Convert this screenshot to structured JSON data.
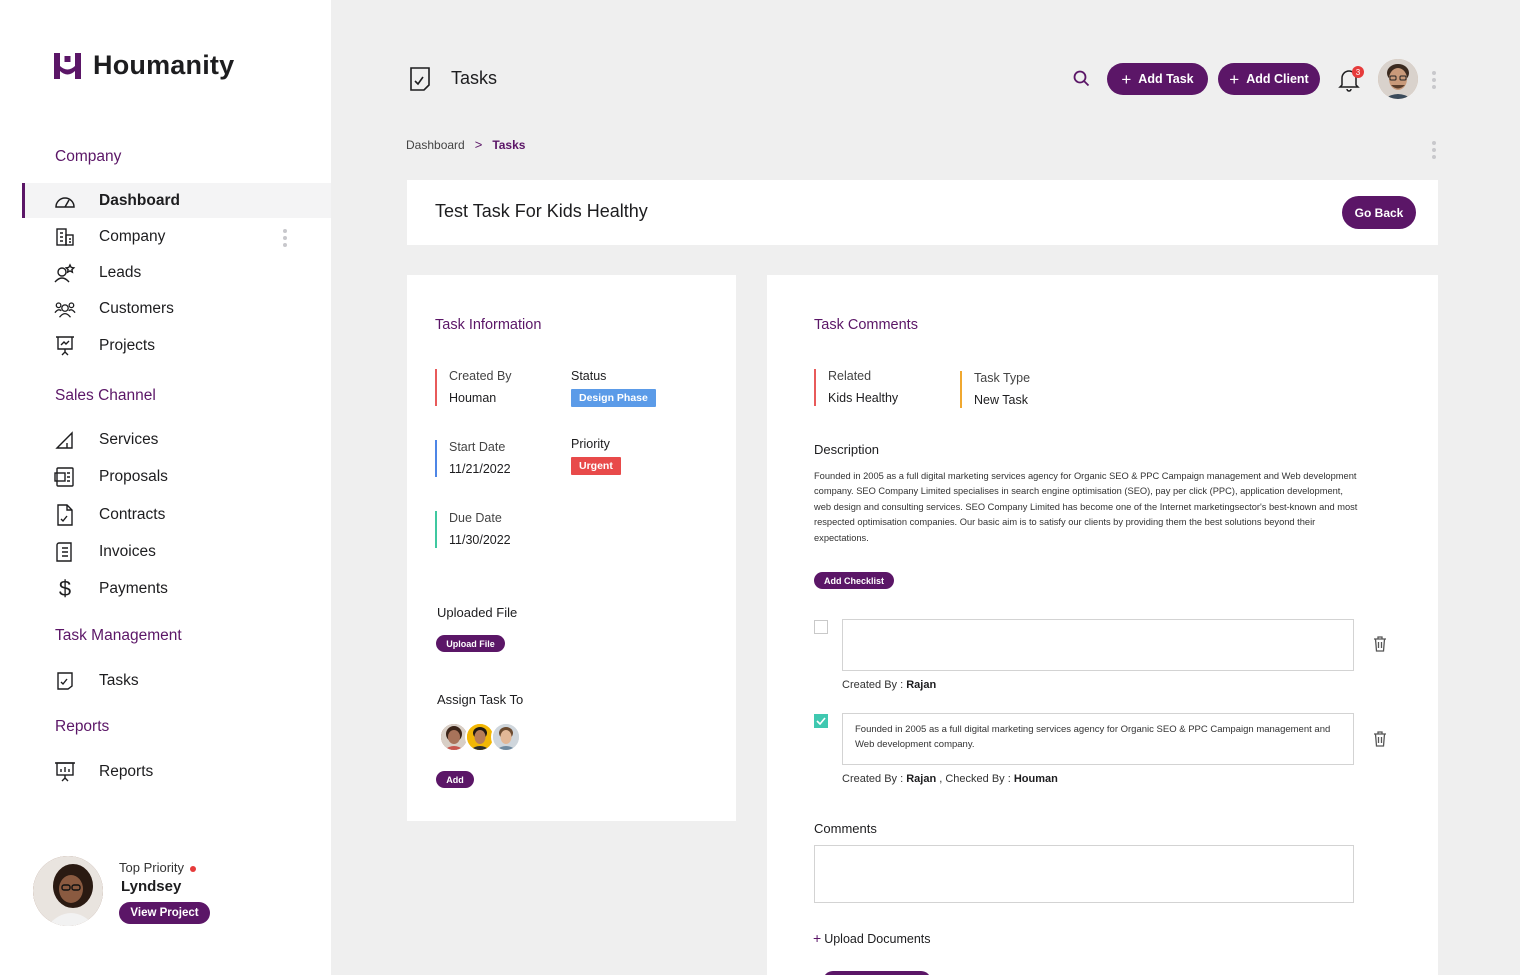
{
  "brand": {
    "name": "Houmanity",
    "accent": "#5b1667"
  },
  "sidebar": {
    "sections": [
      {
        "title": "Company",
        "items": [
          {
            "label": "Dashboard",
            "icon": "dashboard-gauge-icon",
            "active": true
          },
          {
            "label": "Company",
            "icon": "building-icon"
          },
          {
            "label": "Leads",
            "icon": "leads-icon"
          },
          {
            "label": "Customers",
            "icon": "customers-icon"
          },
          {
            "label": "Projects",
            "icon": "presentation-board-icon"
          }
        ]
      },
      {
        "title": "Sales Channel",
        "items": [
          {
            "label": "Services",
            "icon": "services-icon"
          },
          {
            "label": "Proposals",
            "icon": "proposals-icon"
          },
          {
            "label": "Contracts",
            "icon": "contract-icon"
          },
          {
            "label": "Invoices",
            "icon": "invoice-icon"
          },
          {
            "label": "Payments",
            "icon": "dollar-icon"
          }
        ]
      },
      {
        "title": "Task Management",
        "items": [
          {
            "label": "Tasks",
            "icon": "task-check-icon"
          }
        ]
      },
      {
        "title": "Reports",
        "items": [
          {
            "label": "Reports",
            "icon": "reports-chart-icon"
          }
        ]
      }
    ],
    "promo": {
      "caption": "Top Priority",
      "name": "Lyndsey",
      "button": "View Project"
    }
  },
  "header": {
    "title": "Tasks",
    "add_task": "Add Task",
    "add_client": "Add Client",
    "notification_count": "3"
  },
  "breadcrumb": {
    "root": "Dashboard",
    "current": "Tasks"
  },
  "task": {
    "title": "Test Task For Kids Healthy",
    "go_back": "Go Back"
  },
  "info": {
    "heading": "Task Information",
    "created_by_label": "Created By",
    "created_by": "Houman",
    "status_label": "Status",
    "status": "Design Phase",
    "start_label": "Start Date",
    "start": "11/21/2022",
    "priority_label": "Priority",
    "priority": "Urgent",
    "due_label": "Due Date",
    "due": "11/30/2022",
    "uploaded_label": "Uploaded File",
    "upload_btn": "Upload File",
    "assign_label": "Assign Task To",
    "add_btn": "Add",
    "colors": {
      "created": "#e85a5a",
      "start": "#4e86e6",
      "due": "#3fc8a0",
      "status": "#5b9be8",
      "priority": "#e84a4a"
    }
  },
  "comments": {
    "heading": "Task Comments",
    "related_label": "Related",
    "related": "Kids Healthy",
    "type_label": "Task Type",
    "type": "New Task",
    "description_label": "Description",
    "description": "Founded in 2005 as a full digital marketing services agency for Organic SEO & PPC Campaign management and Web development company. SEO Company Limited specialises in search engine optimisation (SEO), pay per click (PPC), application development, web design and consulting services. SEO Company Limited has become one of the Internet marketingsector's best-known and most respected optimisation companies. Our basic aim is to satisfy our clients by providing them the best solutions beyond their expectations.",
    "add_checklist": "Add Checklist",
    "checklist": [
      {
        "text": "",
        "checked": false,
        "created_prefix": "Created By :",
        "created_by": "Rajan",
        "checked_prefix": "",
        "checked_by": ""
      },
      {
        "text": "Founded in 2005 as a full digital marketing services agency for Organic SEO & PPC Campaign management and Web development company.",
        "checked": true,
        "created_prefix": "Created By :",
        "created_by": "Rajan",
        "checked_prefix": ", Checked By :",
        "checked_by": "Houman"
      }
    ],
    "comments_label": "Comments",
    "upload_docs": "Upload Documents"
  }
}
